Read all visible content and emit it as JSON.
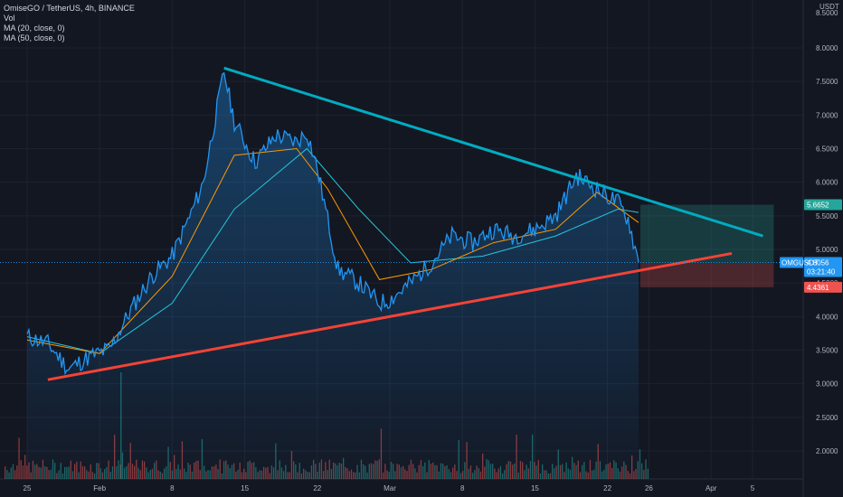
{
  "legend": {
    "symbol_line": "OmiseGO / TetherUS, 4h, BINANCE",
    "vol": "Vol",
    "ma20": "MA (20, close, 0)",
    "ma50": "MA (50, close, 0)"
  },
  "currency": "USDT",
  "colors": {
    "background": "#131722",
    "price_line": "#2196f3",
    "ma20": "#ff9800",
    "ma50": "#26c6da",
    "trend_upper": "#00acc1",
    "trend_lower": "#f44336",
    "vol_up": "#26a69a",
    "vol_down": "#ef5350",
    "target_zone": "#26a69a",
    "stop_zone": "#ef5350"
  },
  "chart_data": {
    "type": "line",
    "title": "OmiseGO / TetherUS, 4h, BINANCE",
    "y_axis": {
      "ticks": [
        "8.0000",
        "7.5000",
        "7.0000",
        "6.5000",
        "6.0000",
        "5.5000",
        "5.0000",
        "4.5000",
        "4.0000",
        "3.5000",
        "3.0000",
        "2.5000",
        "2.0000"
      ],
      "top_label": "8.5000",
      "range": [
        1.7,
        8.6
      ]
    },
    "x_axis": {
      "ticks": [
        "25",
        "Feb",
        "8",
        "15",
        "22",
        "Mar",
        "8",
        "15",
        "22",
        "26",
        "Apr",
        "5"
      ]
    },
    "price_series": [
      [
        "Jan 25",
        3.7
      ],
      [
        "Jan 27",
        3.6
      ],
      [
        "Jan 29",
        3.22
      ],
      [
        "Jan 31",
        3.4
      ],
      [
        "Feb 2",
        3.52
      ],
      [
        "Feb 4",
        4.1
      ],
      [
        "Feb 6",
        4.6
      ],
      [
        "Feb 8",
        4.9
      ],
      [
        "Feb 10",
        5.6
      ],
      [
        "Feb 11",
        6.0
      ],
      [
        "Feb 13",
        7.65
      ],
      [
        "Feb 14",
        6.9
      ],
      [
        "Feb 16",
        6.3
      ],
      [
        "Feb 18",
        6.7
      ],
      [
        "Feb 20",
        6.6
      ],
      [
        "Feb 21",
        6.75
      ],
      [
        "Feb 22",
        6.2
      ],
      [
        "Feb 24",
        4.7
      ],
      [
        "Feb 26",
        4.5
      ],
      [
        "Feb 28",
        4.2
      ],
      [
        "Mar 1",
        4.25
      ],
      [
        "Mar 3",
        4.5
      ],
      [
        "Mar 5",
        4.8
      ],
      [
        "Mar 7",
        5.2
      ],
      [
        "Mar 9",
        5.1
      ],
      [
        "Mar 11",
        5.3
      ],
      [
        "Mar 13",
        5.2
      ],
      [
        "Mar 15",
        5.3
      ],
      [
        "Mar 17",
        5.5
      ],
      [
        "Mar 19",
        6.1
      ],
      [
        "Mar 21",
        5.9
      ],
      [
        "Mar 23",
        5.7
      ],
      [
        "Mar 24",
        5.45
      ],
      [
        "Mar 25",
        4.81
      ]
    ],
    "ma20_series": [
      [
        "Jan 25",
        3.65
      ],
      [
        "Feb 1",
        3.45
      ],
      [
        "Feb 8",
        4.6
      ],
      [
        "Feb 14",
        6.4
      ],
      [
        "Feb 20",
        6.5
      ],
      [
        "Feb 23",
        5.9
      ],
      [
        "Feb 28",
        4.55
      ],
      [
        "Mar 5",
        4.7
      ],
      [
        "Mar 11",
        5.1
      ],
      [
        "Mar 17",
        5.3
      ],
      [
        "Mar 21",
        5.85
      ],
      [
        "Mar 25",
        5.4
      ]
    ],
    "ma50_series": [
      [
        "Jan 25",
        3.7
      ],
      [
        "Feb 1",
        3.45
      ],
      [
        "Feb 8",
        4.2
      ],
      [
        "Feb 14",
        5.6
      ],
      [
        "Feb 21",
        6.5
      ],
      [
        "Feb 26",
        5.6
      ],
      [
        "Mar 3",
        4.8
      ],
      [
        "Mar 10",
        4.9
      ],
      [
        "Mar 17",
        5.2
      ],
      [
        "Mar 23",
        5.6
      ],
      [
        "Mar 25",
        5.55
      ]
    ],
    "trendlines": [
      {
        "from": [
          "Feb 13",
          7.7
        ],
        "to": [
          "Apr 6",
          5.2
        ]
      },
      {
        "from": [
          "Jan 27",
          3.06
        ],
        "to": [
          "Apr 3",
          4.94
        ]
      }
    ],
    "position": {
      "target": "5.6652",
      "entry": "4.7848",
      "stop": "4.4361"
    },
    "last_price": {
      "symbol": "OMGUSDT",
      "value": "4.8056",
      "countdown": "03:21:40"
    }
  }
}
